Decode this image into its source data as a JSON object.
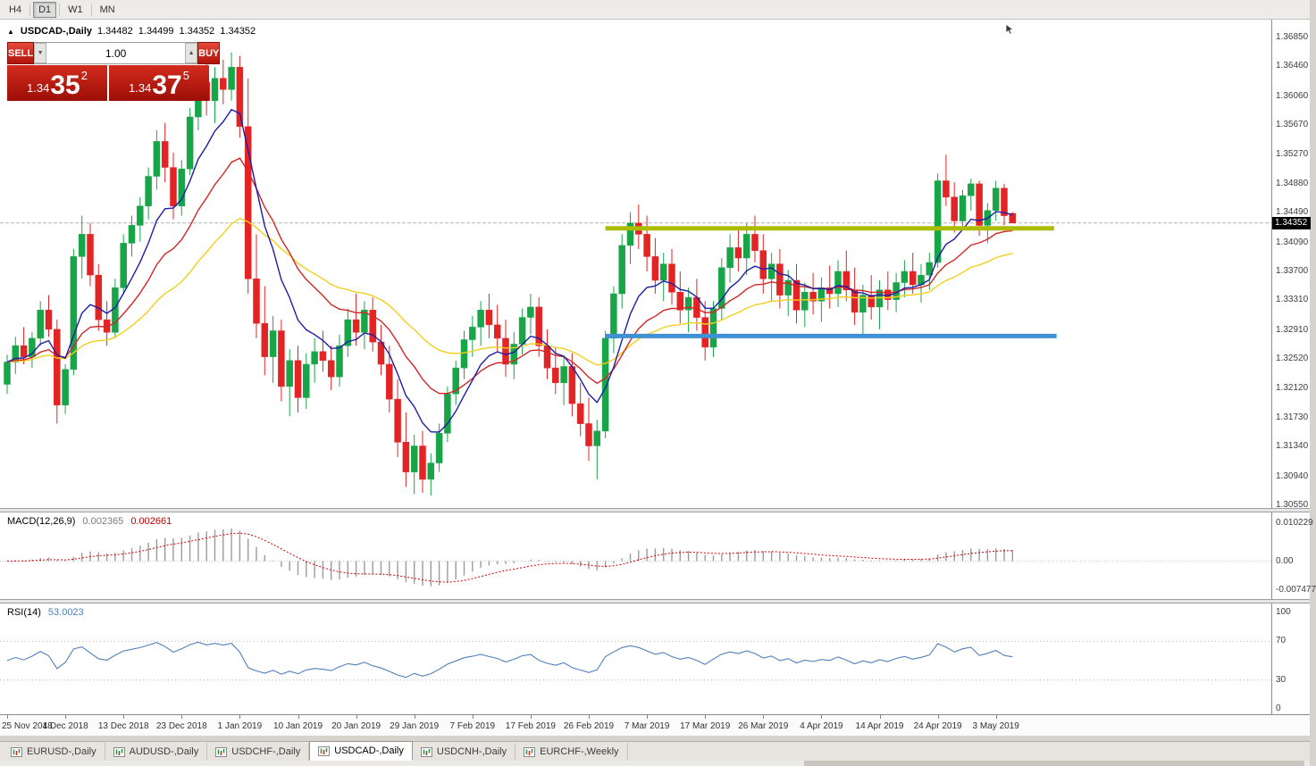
{
  "icons": {
    "collapse": "▲",
    "spin_down": "▼",
    "spin_up": "▲"
  },
  "toolbar": {
    "timeframes": [
      {
        "label": "H4",
        "active": false
      },
      {
        "label": "D1",
        "active": true
      },
      {
        "label": "W1",
        "active": false
      },
      {
        "label": "MN",
        "active": false
      }
    ]
  },
  "chart": {
    "title": "USDCAD-,Daily",
    "ohlc": {
      "open": "1.34482",
      "high": "1.34499",
      "low": "1.34352",
      "close": "1.34352"
    }
  },
  "trade_panel": {
    "sell_label": "SELL",
    "buy_label": "BUY",
    "volume": "1.00",
    "sell_price": {
      "prefix": "1.34",
      "big": "35",
      "sup": "2"
    },
    "buy_price": {
      "prefix": "1.34",
      "big": "37",
      "sup": "5"
    }
  },
  "price_scale": [
    "1.36850",
    "1.36460",
    "1.36060",
    "1.35670",
    "1.35270",
    "1.34880",
    "1.34490",
    "1.34090",
    "1.33700",
    "1.33310",
    "1.32910",
    "1.32520",
    "1.32120",
    "1.31730",
    "1.31340",
    "1.30940",
    "1.30550"
  ],
  "current_price_tag": "1.34352",
  "macd_panel": {
    "label": "MACD(12,26,9)",
    "value1": "0.002365",
    "value2": "0.002661",
    "scale_top": "0.010229",
    "scale_zero": "0.00",
    "scale_bottom": "-0.007477"
  },
  "rsi_panel": {
    "label": "RSI(14)",
    "value": "53.0023",
    "scale": [
      "100",
      "70",
      "30",
      "0"
    ]
  },
  "date_axis": [
    {
      "i": 0,
      "label": "25 Nov 2018"
    },
    {
      "i": 7,
      "label": "4 Dec 2018"
    },
    {
      "i": 14,
      "label": "13 Dec 2018"
    },
    {
      "i": 21,
      "label": "23 Dec 2018"
    },
    {
      "i": 28,
      "label": "1 Jan 2019"
    },
    {
      "i": 35,
      "label": "10 Jan 2019"
    },
    {
      "i": 42,
      "label": "20 Jan 2019"
    },
    {
      "i": 49,
      "label": "29 Jan 2019"
    },
    {
      "i": 56,
      "label": "7 Feb 2019"
    },
    {
      "i": 63,
      "label": "17 Feb 2019"
    },
    {
      "i": 70,
      "label": "26 Feb 2019"
    },
    {
      "i": 77,
      "label": "7 Mar 2019"
    },
    {
      "i": 84,
      "label": "17 Mar 2019"
    },
    {
      "i": 91,
      "label": "26 Mar 2019"
    },
    {
      "i": 98,
      "label": "4 Apr 2019"
    },
    {
      "i": 105,
      "label": "14 Apr 2019"
    },
    {
      "i": 112,
      "label": "24 Apr 2019"
    },
    {
      "i": 119,
      "label": "3 May 2019"
    }
  ],
  "bottom_tabs": [
    {
      "label": "EURUSD-,Daily",
      "active": false
    },
    {
      "label": "AUDUSD-,Daily",
      "active": false
    },
    {
      "label": "USDCHF-,Daily",
      "active": false
    },
    {
      "label": "USDCAD-,Daily",
      "active": true
    },
    {
      "label": "USDCNH-,Daily",
      "active": false
    },
    {
      "label": "EURCHF-,Weekly",
      "active": false
    }
  ],
  "chart_data": {
    "type": "candlestick",
    "instrument": "USDCAD",
    "timeframe": "Daily",
    "price_range": {
      "top": 1.3685,
      "bottom": 1.3055
    },
    "bid_line": 1.34352,
    "colors": {
      "up": "#18a548",
      "down": "#e32424"
    },
    "candles": [
      [
        1.3218,
        1.3258,
        1.3205,
        1.3248
      ],
      [
        1.3248,
        1.3282,
        1.3232,
        1.327
      ],
      [
        1.327,
        1.3295,
        1.3245,
        1.3255
      ],
      [
        1.3255,
        1.3288,
        1.324,
        1.328
      ],
      [
        1.328,
        1.333,
        1.327,
        1.3318
      ],
      [
        1.3318,
        1.3338,
        1.3282,
        1.3292
      ],
      [
        1.3292,
        1.3305,
        1.3165,
        1.319
      ],
      [
        1.319,
        1.3245,
        1.3178,
        1.3238
      ],
      [
        1.3238,
        1.34,
        1.323,
        1.339
      ],
      [
        1.339,
        1.3445,
        1.336,
        1.342
      ],
      [
        1.342,
        1.3435,
        1.335,
        1.3365
      ],
      [
        1.3365,
        1.338,
        1.329,
        1.3305
      ],
      [
        1.3305,
        1.333,
        1.327,
        1.3288
      ],
      [
        1.3288,
        1.336,
        1.328,
        1.3348
      ],
      [
        1.3348,
        1.342,
        1.334,
        1.3408
      ],
      [
        1.3408,
        1.3445,
        1.339,
        1.3432
      ],
      [
        1.3432,
        1.347,
        1.341,
        1.3458
      ],
      [
        1.3458,
        1.351,
        1.344,
        1.3498
      ],
      [
        1.3498,
        1.356,
        1.348,
        1.3545
      ],
      [
        1.3545,
        1.357,
        1.349,
        1.351
      ],
      [
        1.351,
        1.353,
        1.344,
        1.3458
      ],
      [
        1.3458,
        1.352,
        1.3445,
        1.3508
      ],
      [
        1.3508,
        1.359,
        1.35,
        1.3578
      ],
      [
        1.3578,
        1.364,
        1.356,
        1.3625
      ],
      [
        1.3625,
        1.366,
        1.358,
        1.36
      ],
      [
        1.36,
        1.3645,
        1.357,
        1.363
      ],
      [
        1.363,
        1.3655,
        1.3595,
        1.3615
      ],
      [
        1.3615,
        1.3665,
        1.36,
        1.3645
      ],
      [
        1.3645,
        1.366,
        1.355,
        1.3565
      ],
      [
        1.3565,
        1.363,
        1.334,
        1.336
      ],
      [
        1.336,
        1.342,
        1.328,
        1.33
      ],
      [
        1.33,
        1.335,
        1.323,
        1.3255
      ],
      [
        1.3255,
        1.331,
        1.322,
        1.329
      ],
      [
        1.329,
        1.3305,
        1.3195,
        1.3215
      ],
      [
        1.3215,
        1.3265,
        1.3175,
        1.325
      ],
      [
        1.325,
        1.327,
        1.318,
        1.32
      ],
      [
        1.32,
        1.326,
        1.3185,
        1.3245
      ],
      [
        1.3245,
        1.328,
        1.322,
        1.3262
      ],
      [
        1.3262,
        1.329,
        1.3235,
        1.325
      ],
      [
        1.325,
        1.327,
        1.321,
        1.3228
      ],
      [
        1.3228,
        1.3285,
        1.3215,
        1.327
      ],
      [
        1.327,
        1.332,
        1.3255,
        1.3305
      ],
      [
        1.3305,
        1.334,
        1.327,
        1.3288
      ],
      [
        1.3288,
        1.333,
        1.3265,
        1.3318
      ],
      [
        1.3318,
        1.3335,
        1.3262,
        1.3275
      ],
      [
        1.3275,
        1.3298,
        1.323,
        1.3245
      ],
      [
        1.3245,
        1.327,
        1.318,
        1.3198
      ],
      [
        1.3198,
        1.3225,
        1.312,
        1.314
      ],
      [
        1.314,
        1.318,
        1.308,
        1.31
      ],
      [
        1.31,
        1.315,
        1.307,
        1.3135
      ],
      [
        1.3135,
        1.3155,
        1.3072,
        1.309
      ],
      [
        1.309,
        1.3125,
        1.3068,
        1.3112
      ],
      [
        1.3112,
        1.3165,
        1.31,
        1.3152
      ],
      [
        1.3152,
        1.3215,
        1.314,
        1.3205
      ],
      [
        1.3205,
        1.325,
        1.319,
        1.324
      ],
      [
        1.324,
        1.329,
        1.3225,
        1.3278
      ],
      [
        1.3278,
        1.331,
        1.3255,
        1.3295
      ],
      [
        1.3295,
        1.333,
        1.327,
        1.3318
      ],
      [
        1.3318,
        1.334,
        1.328,
        1.3298
      ],
      [
        1.3298,
        1.3325,
        1.3262,
        1.328
      ],
      [
        1.328,
        1.3305,
        1.3228,
        1.3245
      ],
      [
        1.3245,
        1.3288,
        1.3225,
        1.3272
      ],
      [
        1.3272,
        1.332,
        1.3258,
        1.3308
      ],
      [
        1.3308,
        1.334,
        1.3285,
        1.3322
      ],
      [
        1.3322,
        1.3335,
        1.3255,
        1.327
      ],
      [
        1.327,
        1.3292,
        1.3225,
        1.324
      ],
      [
        1.324,
        1.3268,
        1.3205,
        1.322
      ],
      [
        1.322,
        1.3255,
        1.319,
        1.3242
      ],
      [
        1.3242,
        1.326,
        1.3175,
        1.3192
      ],
      [
        1.3192,
        1.322,
        1.3148,
        1.3165
      ],
      [
        1.3165,
        1.32,
        1.3115,
        1.3135
      ],
      [
        1.3135,
        1.317,
        1.309,
        1.3155
      ],
      [
        1.3155,
        1.329,
        1.3145,
        1.328
      ],
      [
        1.328,
        1.335,
        1.326,
        1.334
      ],
      [
        1.334,
        1.342,
        1.332,
        1.3405
      ],
      [
        1.3405,
        1.345,
        1.338,
        1.3435
      ],
      [
        1.3435,
        1.346,
        1.34,
        1.342
      ],
      [
        1.342,
        1.3445,
        1.337,
        1.339
      ],
      [
        1.339,
        1.3415,
        1.334,
        1.3358
      ],
      [
        1.3358,
        1.3395,
        1.333,
        1.338
      ],
      [
        1.338,
        1.34,
        1.3325,
        1.3342
      ],
      [
        1.3342,
        1.337,
        1.33,
        1.3318
      ],
      [
        1.3318,
        1.3348,
        1.3288,
        1.3335
      ],
      [
        1.3335,
        1.336,
        1.329,
        1.3308
      ],
      [
        1.3308,
        1.333,
        1.325,
        1.3268
      ],
      [
        1.3268,
        1.333,
        1.3255,
        1.332
      ],
      [
        1.332,
        1.3388,
        1.3305,
        1.3375
      ],
      [
        1.3375,
        1.342,
        1.3355,
        1.3402
      ],
      [
        1.3402,
        1.343,
        1.337,
        1.3388
      ],
      [
        1.3388,
        1.3435,
        1.3365,
        1.342
      ],
      [
        1.342,
        1.3445,
        1.3382,
        1.3398
      ],
      [
        1.3398,
        1.342,
        1.334,
        1.336
      ],
      [
        1.336,
        1.3395,
        1.333,
        1.338
      ],
      [
        1.338,
        1.34,
        1.332,
        1.3338
      ],
      [
        1.3338,
        1.3372,
        1.331,
        1.3358
      ],
      [
        1.3358,
        1.338,
        1.33,
        1.3318
      ],
      [
        1.3318,
        1.3355,
        1.3295,
        1.3342
      ],
      [
        1.3342,
        1.3368,
        1.3312,
        1.333
      ],
      [
        1.333,
        1.3362,
        1.3302,
        1.3348
      ],
      [
        1.3348,
        1.3378,
        1.332,
        1.334
      ],
      [
        1.334,
        1.3385,
        1.3322,
        1.337
      ],
      [
        1.337,
        1.3398,
        1.333,
        1.3345
      ],
      [
        1.3345,
        1.3375,
        1.3298,
        1.3315
      ],
      [
        1.3315,
        1.3352,
        1.3285,
        1.3338
      ],
      [
        1.3338,
        1.3365,
        1.3305,
        1.3322
      ],
      [
        1.3322,
        1.3358,
        1.3292,
        1.3345
      ],
      [
        1.3345,
        1.337,
        1.3318,
        1.3332
      ],
      [
        1.3332,
        1.3368,
        1.3315,
        1.3355
      ],
      [
        1.3355,
        1.3385,
        1.3335,
        1.337
      ],
      [
        1.337,
        1.3395,
        1.334,
        1.3352
      ],
      [
        1.3352,
        1.338,
        1.3328,
        1.3365
      ],
      [
        1.3365,
        1.3395,
        1.3345,
        1.3382
      ],
      [
        1.3382,
        1.3502,
        1.3375,
        1.3492
      ],
      [
        1.3492,
        1.3527,
        1.3458,
        1.347
      ],
      [
        1.347,
        1.349,
        1.3422,
        1.3438
      ],
      [
        1.3438,
        1.348,
        1.3428,
        1.3472
      ],
      [
        1.3472,
        1.3495,
        1.3452,
        1.3488
      ],
      [
        1.3488,
        1.3492,
        1.3418,
        1.3432
      ],
      [
        1.3432,
        1.3462,
        1.3408,
        1.3452
      ],
      [
        1.3452,
        1.3492,
        1.3438,
        1.3482
      ],
      [
        1.3482,
        1.3488,
        1.3432,
        1.3445
      ],
      [
        1.34482,
        1.34499,
        1.34352,
        1.34352
      ]
    ],
    "overlays": {
      "ma_fast": {
        "period": 8,
        "color": "#1d1da8"
      },
      "ma_mid": {
        "period": 17,
        "color": "#d22626"
      },
      "ma_slow": {
        "period": 34,
        "color": "#f2cf1d"
      },
      "hlines": [
        {
          "name": "resistance-line",
          "price": 1.3428,
          "from_index": 72,
          "to_index": 126,
          "color": "#acbc00",
          "width": 5
        },
        {
          "name": "support-line",
          "price": 1.3283,
          "from_index": 72,
          "to_index": 126.3,
          "color": "#4090d5",
          "width": 5
        }
      ]
    },
    "indicators": {
      "macd": {
        "fast": 12,
        "slow": 26,
        "signal": 9,
        "range": [
          -0.0095,
          0.0112
        ],
        "histogram_color": "#9b9b9b",
        "signal_color": "#cc0000"
      },
      "rsi": {
        "period": 14,
        "range": [
          0,
          100
        ],
        "levels": [
          70,
          30
        ],
        "color": "#4f81bd"
      }
    }
  }
}
